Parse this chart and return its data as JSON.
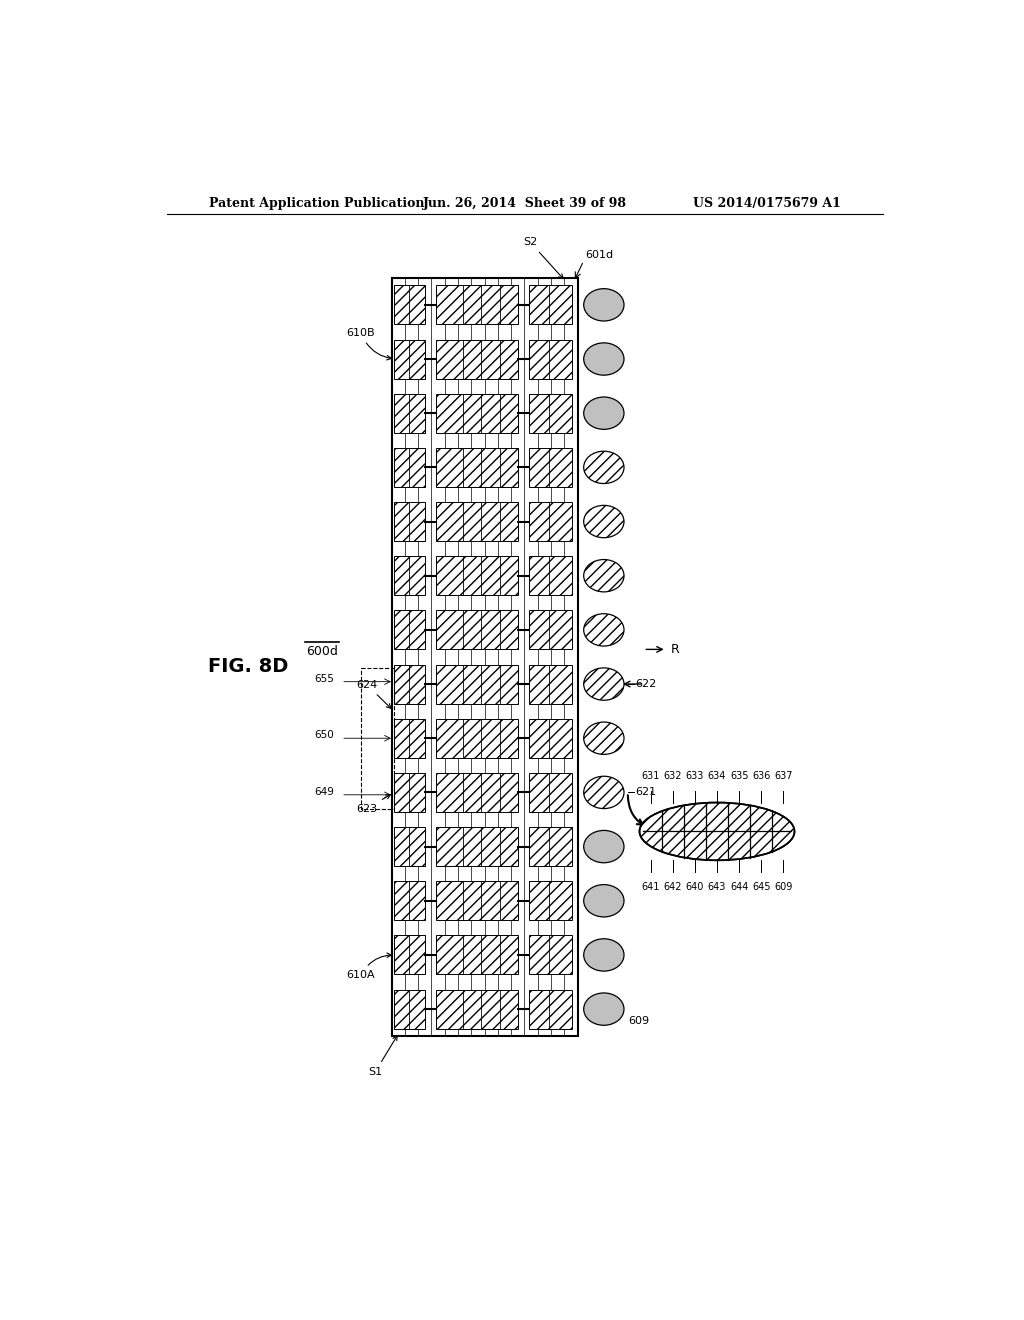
{
  "header_left": "Patent Application Publication",
  "header_center": "Jun. 26, 2014  Sheet 39 of 98",
  "header_right": "US 2014/0175679 A1",
  "fig_label": "FIG. 8D",
  "device_label": "600d",
  "bg_color": "#ffffff",
  "n_cols": 14,
  "top_labels": [
    "631",
    "632",
    "633",
    "634",
    "635",
    "636",
    "637"
  ],
  "bot_labels": [
    "641",
    "642",
    "640",
    "643",
    "644",
    "645",
    "609"
  ]
}
